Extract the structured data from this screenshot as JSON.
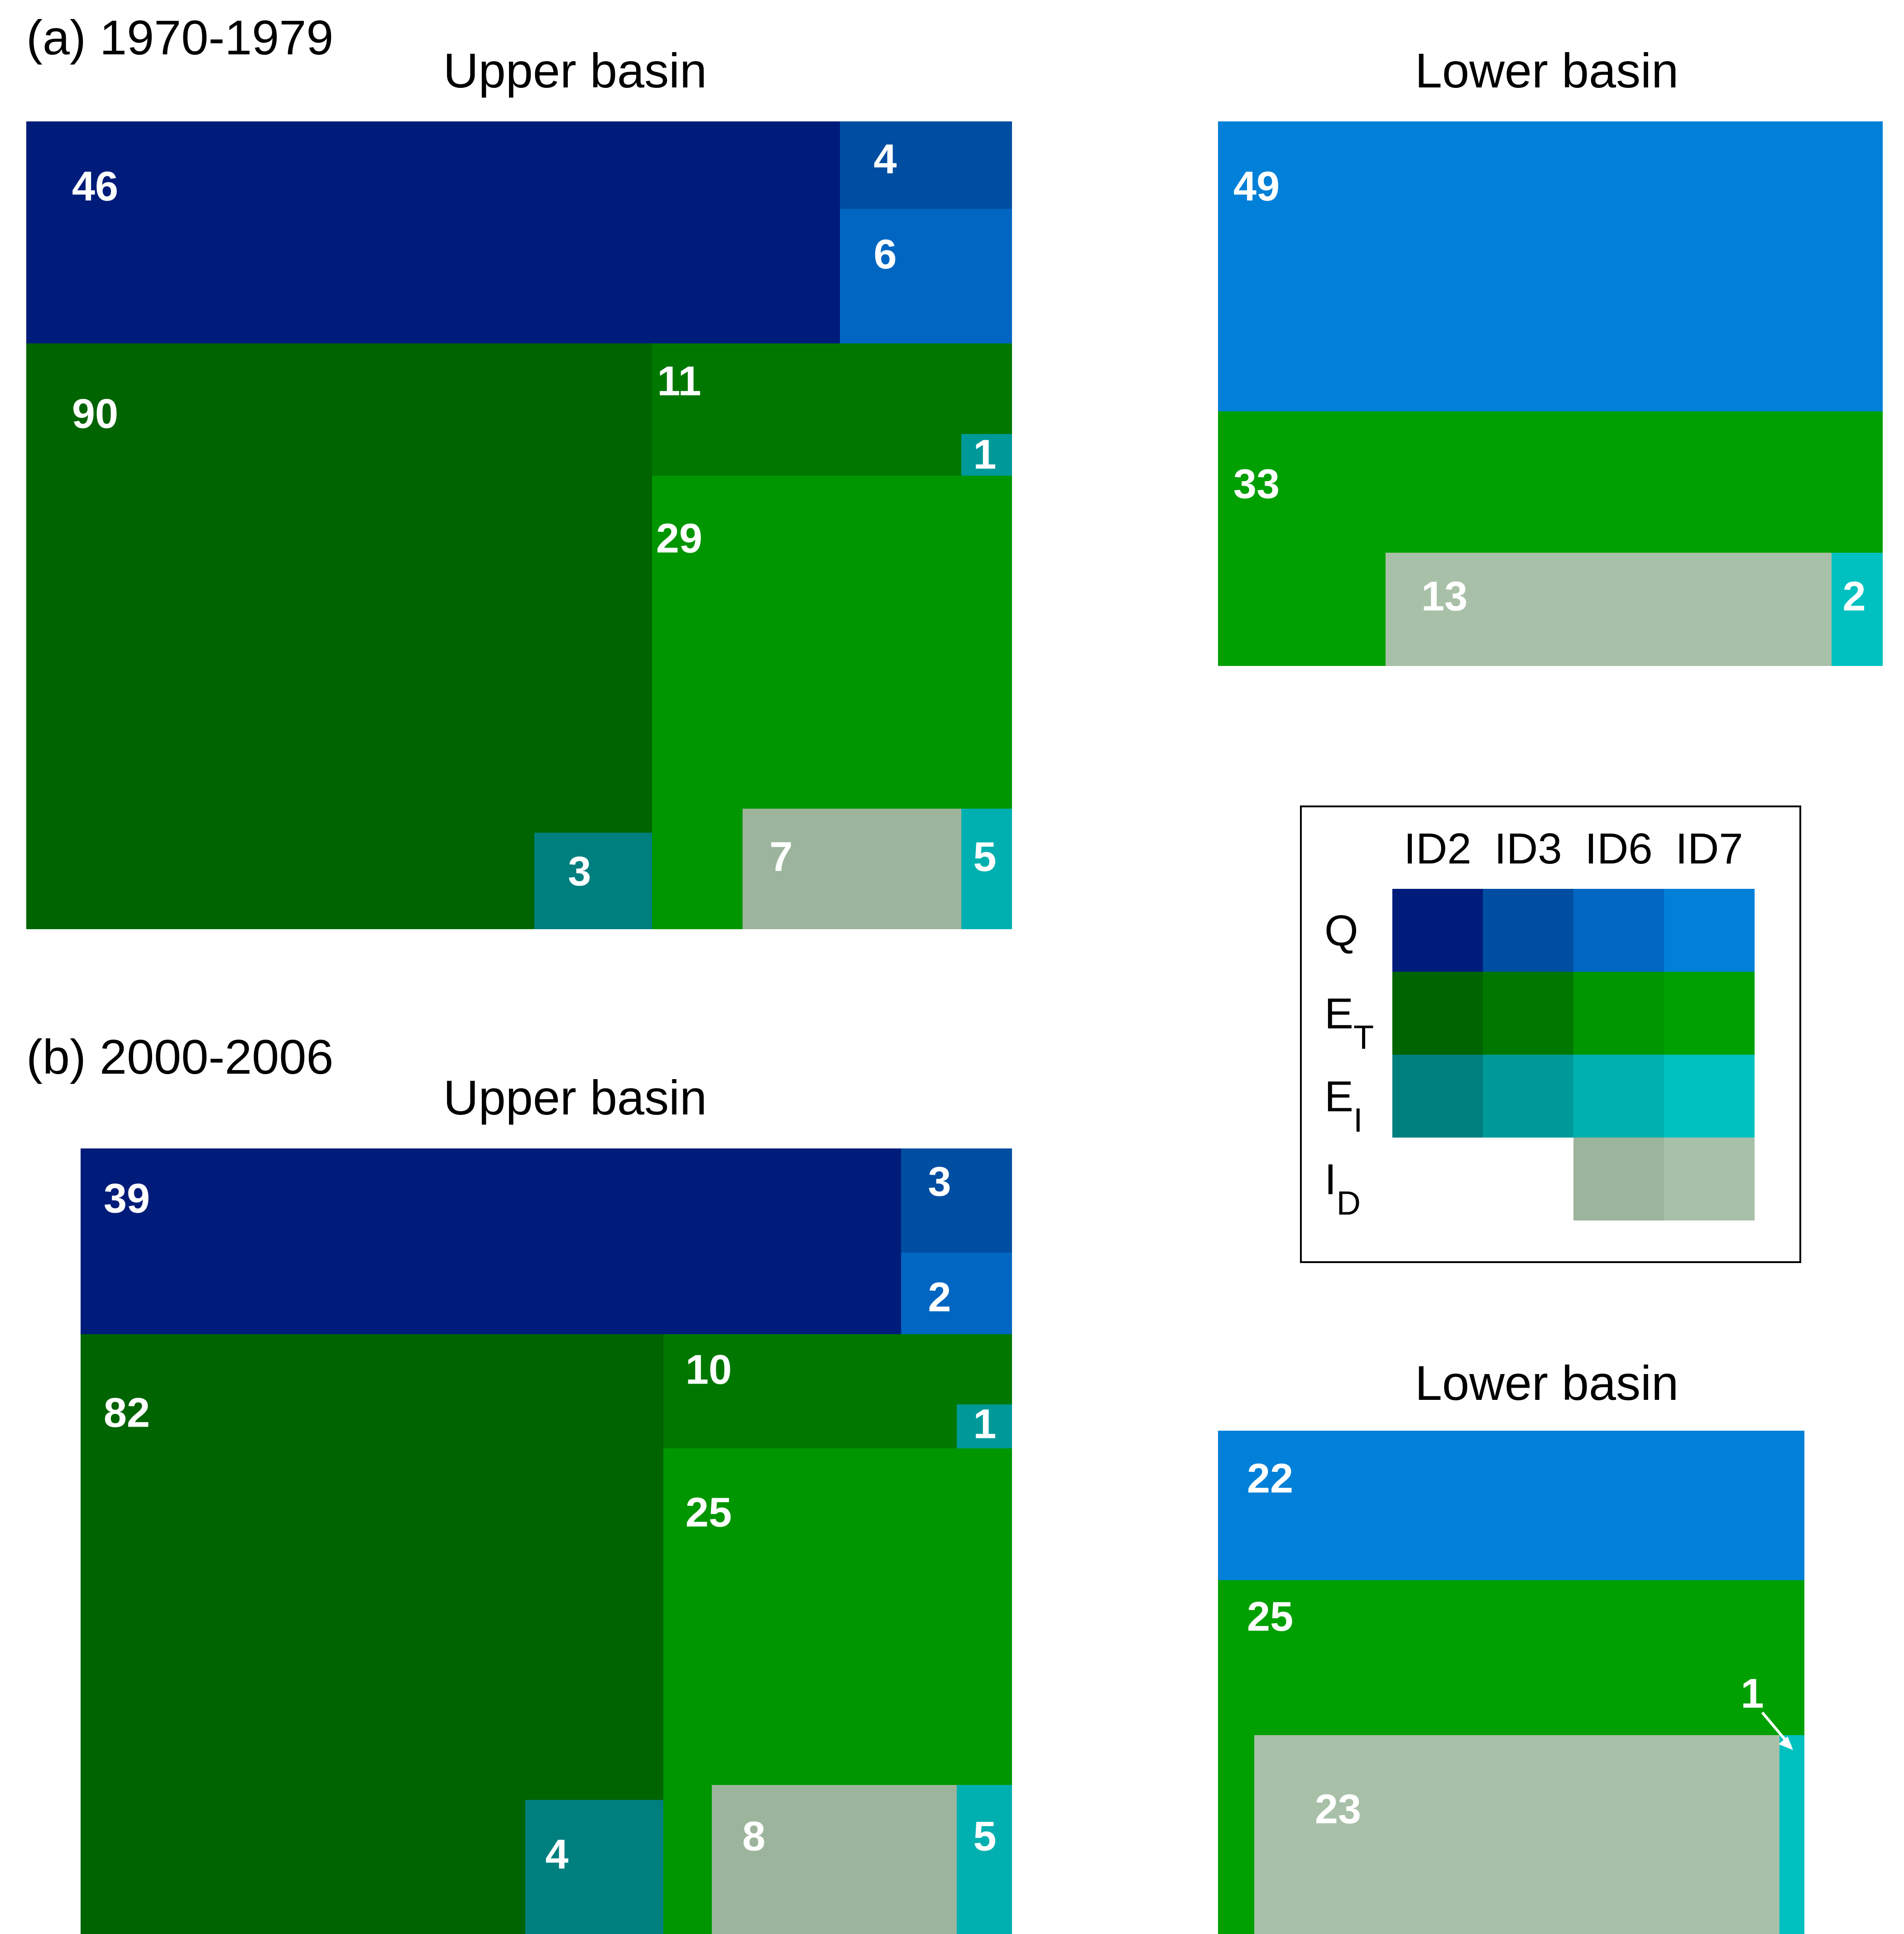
{
  "colors": {
    "Q": {
      "ID2": "#001c7a",
      "ID3": "#004ea1",
      "ID6": "#0066c2",
      "ID7": "#0080d8"
    },
    "ET": {
      "ID2": "#006400",
      "ID3": "#007800",
      "ID6": "#009600",
      "ID7": "#00a000"
    },
    "EI": {
      "ID2": "#007f7f",
      "ID3": "#009999",
      "ID6": "#00b0b0",
      "ID7": "#00c0c0"
    },
    "ID": {
      "ID6": "#9cb49c",
      "ID7": "#a8c0a8"
    }
  },
  "legend": {
    "columns": [
      "ID2",
      "ID3",
      "ID6",
      "ID7"
    ],
    "rows": [
      {
        "key": "Q",
        "main": "Q",
        "sub": ""
      },
      {
        "key": "ET",
        "main": "E",
        "sub": "T"
      },
      {
        "key": "EI",
        "main": "E",
        "sub": "I"
      },
      {
        "key": "ID",
        "main": "I",
        "sub": "D"
      }
    ]
  },
  "chart_data": [
    {
      "type": "treemap",
      "panel_label": "(a) 1970-1979",
      "title": "Upper basin",
      "cells": [
        {
          "component": "Q",
          "id": "ID2",
          "value": 46
        },
        {
          "component": "Q",
          "id": "ID3",
          "value": 4
        },
        {
          "component": "Q",
          "id": "ID6",
          "value": 6
        },
        {
          "component": "ET",
          "id": "ID2",
          "value": 90
        },
        {
          "component": "EI",
          "id": "ID2",
          "value": 3
        },
        {
          "component": "ET",
          "id": "ID3",
          "value": 11
        },
        {
          "component": "EI",
          "id": "ID3",
          "value": 1
        },
        {
          "component": "ET",
          "id": "ID6",
          "value": 29
        },
        {
          "component": "ID",
          "id": "ID6",
          "value": 7
        },
        {
          "component": "EI",
          "id": "ID6",
          "value": 5
        }
      ]
    },
    {
      "type": "treemap",
      "panel_label": "",
      "title": "Lower basin",
      "cells": [
        {
          "component": "Q",
          "id": "ID7",
          "value": 49
        },
        {
          "component": "ET",
          "id": "ID7",
          "value": 33
        },
        {
          "component": "ID",
          "id": "ID7",
          "value": 13
        },
        {
          "component": "EI",
          "id": "ID7",
          "value": 2
        }
      ]
    },
    {
      "type": "treemap",
      "panel_label": "(b) 2000-2006",
      "title": "Upper basin",
      "cells": [
        {
          "component": "Q",
          "id": "ID2",
          "value": 39
        },
        {
          "component": "Q",
          "id": "ID3",
          "value": 3
        },
        {
          "component": "Q",
          "id": "ID6",
          "value": 2
        },
        {
          "component": "ET",
          "id": "ID2",
          "value": 82
        },
        {
          "component": "EI",
          "id": "ID2",
          "value": 4
        },
        {
          "component": "ET",
          "id": "ID3",
          "value": 10
        },
        {
          "component": "EI",
          "id": "ID3",
          "value": 1
        },
        {
          "component": "ET",
          "id": "ID6",
          "value": 25
        },
        {
          "component": "ID",
          "id": "ID6",
          "value": 8
        },
        {
          "component": "EI",
          "id": "ID6",
          "value": 5
        }
      ]
    },
    {
      "type": "treemap",
      "panel_label": "",
      "title": "Lower basin",
      "cells": [
        {
          "component": "Q",
          "id": "ID7",
          "value": 22
        },
        {
          "component": "ET",
          "id": "ID7",
          "value": 25
        },
        {
          "component": "ID",
          "id": "ID7",
          "value": 23
        },
        {
          "component": "EI",
          "id": "ID7",
          "value": 1
        }
      ]
    }
  ]
}
